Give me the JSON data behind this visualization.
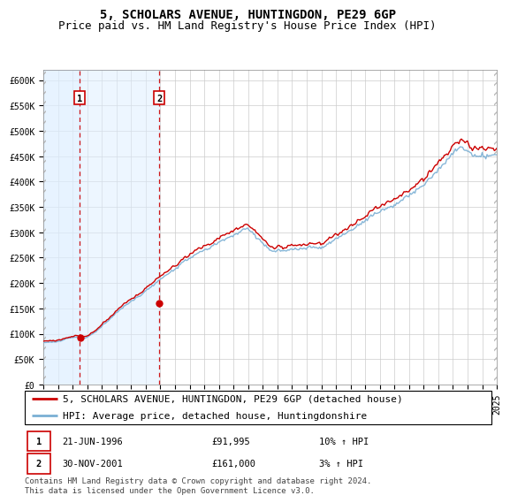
{
  "title": "5, SCHOLARS AVENUE, HUNTINGDON, PE29 6GP",
  "subtitle": "Price paid vs. HM Land Registry's House Price Index (HPI)",
  "ylim": [
    0,
    620000
  ],
  "yticks": [
    0,
    50000,
    100000,
    150000,
    200000,
    250000,
    300000,
    350000,
    400000,
    450000,
    500000,
    550000,
    600000
  ],
  "ytick_labels": [
    "£0",
    "£50K",
    "£100K",
    "£150K",
    "£200K",
    "£250K",
    "£300K",
    "£350K",
    "£400K",
    "£450K",
    "£500K",
    "£550K",
    "£600K"
  ],
  "transaction1": {
    "date": "21-JUN-1996",
    "x": 1996.47,
    "price": 91995,
    "label": "1",
    "pct": "10%",
    "dir": "↑"
  },
  "transaction2": {
    "date": "30-NOV-2001",
    "x": 2001.92,
    "price": 161000,
    "label": "2",
    "pct": "3%",
    "dir": "↑"
  },
  "legend_line1": "5, SCHOLARS AVENUE, HUNTINGDON, PE29 6GP (detached house)",
  "legend_line2": "HPI: Average price, detached house, Huntingdonshire",
  "footer": "Contains HM Land Registry data © Crown copyright and database right 2024.\nThis data is licensed under the Open Government Licence v3.0.",
  "sold_color": "#cc0000",
  "hpi_color": "#7aafd4",
  "grid_color": "#cccccc",
  "vspan_color": "#ddeeff",
  "title_fontsize": 10,
  "subtitle_fontsize": 9,
  "tick_fontsize": 7,
  "legend_fontsize": 8,
  "footer_fontsize": 6.5
}
